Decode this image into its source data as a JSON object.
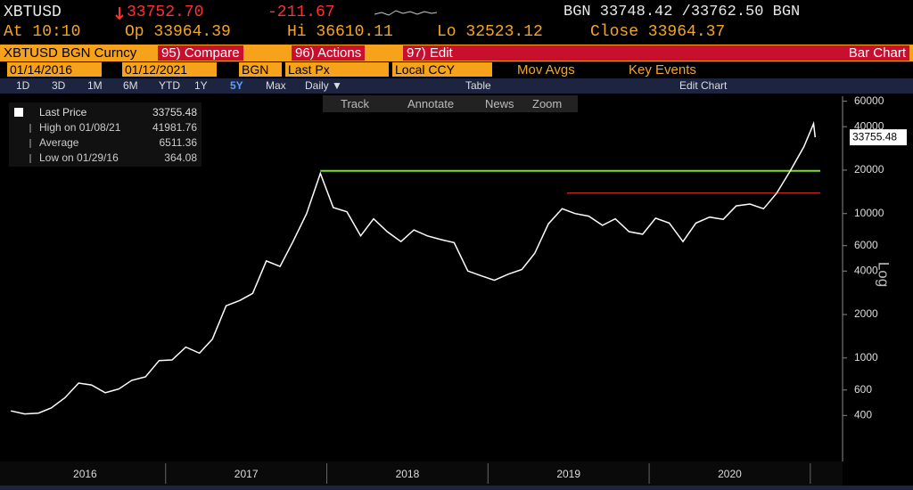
{
  "quote": {
    "ticker": "XBTUSD",
    "last": "33752.70",
    "change": "-211.67",
    "bid_ask": "BGN 33748.42 /33762.50 BGN",
    "at": "At 10:10",
    "open": "Op 33964.39",
    "high": "Hi 36610.11",
    "low": "Lo 32523.12",
    "close": "Close 33964.37"
  },
  "toolbar": {
    "security": "XBTUSD BGN Curncy",
    "compare": "95) Compare",
    "actions": "96) Actions",
    "edit": "97) Edit",
    "chart_type": "Bar Chart",
    "start_date": "01/14/2016",
    "end_date": "01/12/2021",
    "source": "BGN",
    "field": "Last Px",
    "currency": "Local CCY",
    "mov_avgs": "Mov Avgs",
    "key_events": "Key Events",
    "periods": [
      "1D",
      "3D",
      "1M",
      "6M",
      "YTD",
      "1Y",
      "5Y",
      "Max"
    ],
    "selected_period": "5Y",
    "frequency": "Daily ▼",
    "table": "Table",
    "edit_chart": "Edit Chart",
    "tools": [
      "Track",
      "Annotate",
      "News",
      "Zoom"
    ]
  },
  "chart_data": {
    "type": "line",
    "x": [
      2016.04,
      2016.125,
      2016.21,
      2016.29,
      2016.375,
      2016.46,
      2016.54,
      2016.625,
      2016.71,
      2016.79,
      2016.875,
      2016.96,
      2017.04,
      2017.125,
      2017.21,
      2017.29,
      2017.375,
      2017.46,
      2017.54,
      2017.625,
      2017.71,
      2017.79,
      2017.875,
      2017.96,
      2018.04,
      2018.125,
      2018.21,
      2018.29,
      2018.375,
      2018.46,
      2018.54,
      2018.625,
      2018.71,
      2018.79,
      2018.875,
      2018.96,
      2019.04,
      2019.125,
      2019.21,
      2019.29,
      2019.375,
      2019.46,
      2019.54,
      2019.625,
      2019.71,
      2019.79,
      2019.875,
      2019.96,
      2020.04,
      2020.125,
      2020.21,
      2020.29,
      2020.375,
      2020.46,
      2020.54,
      2020.625,
      2020.71,
      2020.79,
      2020.875,
      2020.96,
      2021.02,
      2021.03
    ],
    "series": [
      {
        "name": "Last Price",
        "color": "#ffffff",
        "values": [
          430,
          410,
          415,
          450,
          530,
          670,
          650,
          575,
          610,
          700,
          740,
          960,
          970,
          1190,
          1080,
          1350,
          2300,
          2500,
          2800,
          4700,
          4300,
          6400,
          10000,
          19000,
          11000,
          10300,
          7000,
          9200,
          7500,
          6400,
          7700,
          7000,
          6600,
          6300,
          4000,
          3700,
          3450,
          3800,
          4100,
          5300,
          8500,
          10800,
          10000,
          9600,
          8300,
          9200,
          7500,
          7200,
          9300,
          8600,
          6400,
          8600,
          9450,
          9130,
          11300,
          11650,
          10800,
          13800,
          19700,
          29000,
          41981.76,
          33755.48
        ]
      }
    ],
    "xlim": [
      2016.0,
      2021.2
    ],
    "xticks": [
      {
        "value": 2016.5,
        "label": "2016"
      },
      {
        "value": 2017.5,
        "label": "2017"
      },
      {
        "value": 2018.5,
        "label": "2018"
      },
      {
        "value": 2019.5,
        "label": "2019"
      },
      {
        "value": 2020.5,
        "label": "2020"
      }
    ],
    "ylim": [
      215,
      65000
    ],
    "yticks": [
      400,
      600,
      1000,
      2000,
      4000,
      6000,
      10000,
      20000,
      40000,
      60000
    ],
    "log_scale": true,
    "y_label": "Log",
    "last_value": 33755.48,
    "stats": [
      {
        "label": "High on 01/08/21",
        "value": 41981.76
      },
      {
        "label": "Average",
        "value": 6511.36
      },
      {
        "label": "Low on 01/29/16",
        "value": 364.08
      }
    ],
    "reference_lines": [
      {
        "value": 19783,
        "x_start": 2017.96,
        "color": "#80e020"
      },
      {
        "value": 13880,
        "x_start": 2019.49,
        "color": "#e03020"
      }
    ]
  }
}
